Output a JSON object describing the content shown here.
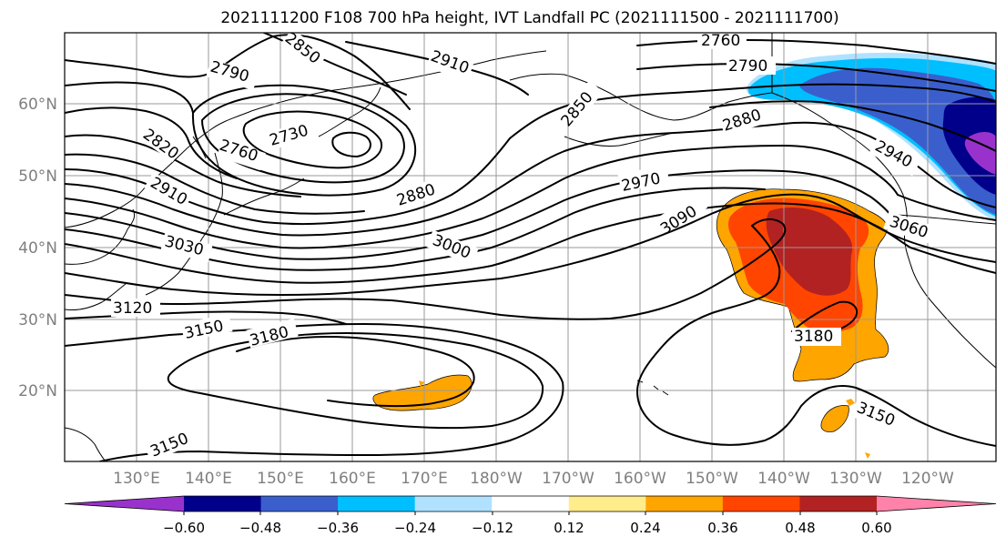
{
  "title": "2021111200 F108 700 hPa height, IVT Landfall PC (2021111500 - 2021111700)",
  "lat_labels": [
    "60°N",
    "50°N",
    "40°N",
    "30°N",
    "20°N"
  ],
  "lon_labels": [
    "130°E",
    "140°E",
    "150°E",
    "160°E",
    "170°E",
    "180°W",
    "170°W",
    "160°W",
    "150°W",
    "140°W",
    "130°W",
    "120°W"
  ],
  "contour_labels": [
    "2850",
    "2910",
    "2760",
    "2790",
    "2790",
    "2730",
    "2760",
    "2820",
    "2910",
    "3030",
    "2880",
    "2850",
    "2880",
    "2970",
    "2940",
    "3000",
    "3090",
    "3060",
    "3120",
    "3150",
    "3180",
    "3180",
    "3150",
    "3150"
  ],
  "colorbar": {
    "colors": [
      "#9932cc",
      "#00008b",
      "#3a5fcd",
      "#00bfff",
      "#b0e2ff",
      "#ffffff",
      "#ffec8b",
      "#ffa500",
      "#ff4500",
      "#b22222",
      "#ff82ab"
    ],
    "ticks": [
      "−0.60",
      "−0.48",
      "−0.36",
      "−0.24",
      "−0.12",
      "0.12",
      "0.24",
      "0.36",
      "0.48",
      "0.60"
    ]
  },
  "fill_colors": {
    "light_orange": "#ffa500",
    "red_orange": "#ff4500",
    "dark_red": "#b22222",
    "yellow": "#ffec8b",
    "deep_sky": "#00bfff",
    "light_blue": "#b0e2ff",
    "royal_blue": "#3a5fcd",
    "navy": "#00008b",
    "purple": "#9932cc"
  }
}
